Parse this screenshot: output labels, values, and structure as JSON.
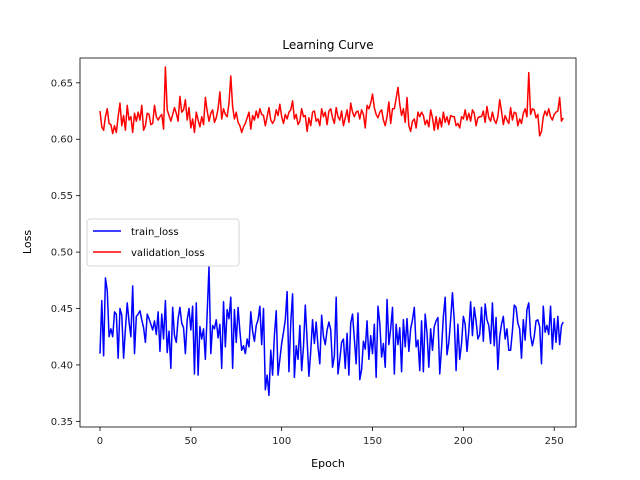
{
  "chart_data": {
    "type": "line",
    "title": "Learning Curve",
    "xlabel": "Epoch",
    "ylabel": "Loss",
    "xlim": [
      -11,
      262
    ],
    "ylim": [
      0.345,
      0.672
    ],
    "xticks": [
      0,
      50,
      100,
      150,
      200,
      250
    ],
    "yticks": [
      0.35,
      0.4,
      0.45,
      0.5,
      0.55,
      0.6,
      0.65
    ],
    "ytick_labels": [
      "0.35",
      "0.40",
      "0.45",
      "0.50",
      "0.55",
      "0.60",
      "0.65"
    ],
    "grid": false,
    "legend_position": "center-left",
    "series": [
      {
        "name": "train_loss",
        "color": "#0000ff",
        "values": [
          0.41,
          0.457,
          0.408,
          0.477,
          0.466,
          0.425,
          0.432,
          0.425,
          0.447,
          0.445,
          0.406,
          0.45,
          0.444,
          0.406,
          0.432,
          0.455,
          0.438,
          0.425,
          0.47,
          0.41,
          0.443,
          0.445,
          0.448,
          0.44,
          0.433,
          0.42,
          0.445,
          0.441,
          0.436,
          0.431,
          0.439,
          0.427,
          0.447,
          0.412,
          0.445,
          0.423,
          0.457,
          0.411,
          0.43,
          0.397,
          0.451,
          0.426,
          0.42,
          0.441,
          0.451,
          0.437,
          0.433,
          0.41,
          0.44,
          0.45,
          0.431,
          0.452,
          0.392,
          0.455,
          0.391,
          0.434,
          0.423,
          0.432,
          0.405,
          0.446,
          0.487,
          0.41,
          0.435,
          0.432,
          0.44,
          0.424,
          0.436,
          0.397,
          0.456,
          0.416,
          0.449,
          0.441,
          0.46,
          0.397,
          0.449,
          0.42,
          0.451,
          0.43,
          0.413,
          0.417,
          0.41,
          0.423,
          0.416,
          0.447,
          0.43,
          0.421,
          0.435,
          0.44,
          0.452,
          0.418,
          0.45,
          0.378,
          0.391,
          0.373,
          0.413,
          0.391,
          0.426,
          0.448,
          0.391,
          0.405,
          0.419,
          0.429,
          0.44,
          0.465,
          0.394,
          0.437,
          0.463,
          0.389,
          0.417,
          0.405,
          0.435,
          0.395,
          0.416,
          0.453,
          0.422,
          0.39,
          0.412,
          0.44,
          0.419,
          0.438,
          0.416,
          0.401,
          0.444,
          0.425,
          0.418,
          0.431,
          0.438,
          0.431,
          0.398,
          0.408,
          0.46,
          0.392,
          0.405,
          0.42,
          0.423,
          0.397,
          0.428,
          0.391,
          0.437,
          0.445,
          0.423,
          0.401,
          0.446,
          0.387,
          0.396,
          0.421,
          0.414,
          0.439,
          0.405,
          0.426,
          0.41,
          0.436,
          0.389,
          0.452,
          0.437,
          0.407,
          0.419,
          0.398,
          0.458,
          0.418,
          0.432,
          0.451,
          0.392,
          0.436,
          0.418,
          0.433,
          0.394,
          0.44,
          0.416,
          0.441,
          0.412,
          0.432,
          0.44,
          0.451,
          0.416,
          0.422,
          0.395,
          0.439,
          0.394,
          0.445,
          0.428,
          0.398,
          0.432,
          0.413,
          0.434,
          0.439,
          0.442,
          0.392,
          0.415,
          0.443,
          0.46,
          0.409,
          0.42,
          0.44,
          0.464,
          0.439,
          0.395,
          0.436,
          0.405,
          0.419,
          0.443,
          0.436,
          0.412,
          0.43,
          0.456,
          0.426,
          0.451,
          0.439,
          0.423,
          0.427,
          0.451,
          0.421,
          0.454,
          0.44,
          0.435,
          0.419,
          0.455,
          0.417,
          0.442,
          0.396,
          0.425,
          0.436,
          0.443,
          0.423,
          0.432,
          0.413,
          0.413,
          0.43,
          0.453,
          0.451,
          0.437,
          0.432,
          0.406,
          0.44,
          0.422,
          0.449,
          0.455,
          0.426,
          0.417,
          0.425,
          0.439,
          0.44,
          0.434,
          0.401,
          0.452,
          0.429,
          0.435,
          0.427,
          0.452,
          0.414,
          0.441,
          0.42,
          0.443,
          0.418,
          0.435,
          0.438
        ]
      },
      {
        "name": "validation_loss",
        "color": "#ff0000",
        "values": [
          0.625,
          0.611,
          0.608,
          0.62,
          0.627,
          0.614,
          0.613,
          0.605,
          0.612,
          0.606,
          0.62,
          0.632,
          0.612,
          0.621,
          0.608,
          0.63,
          0.617,
          0.62,
          0.606,
          0.623,
          0.616,
          0.624,
          0.617,
          0.63,
          0.608,
          0.612,
          0.623,
          0.622,
          0.613,
          0.614,
          0.63,
          0.62,
          0.617,
          0.62,
          0.622,
          0.609,
          0.664,
          0.626,
          0.621,
          0.616,
          0.622,
          0.628,
          0.623,
          0.616,
          0.638,
          0.624,
          0.626,
          0.635,
          0.617,
          0.628,
          0.61,
          0.618,
          0.606,
          0.624,
          0.617,
          0.611,
          0.62,
          0.613,
          0.637,
          0.625,
          0.616,
          0.623,
          0.626,
          0.615,
          0.619,
          0.627,
          0.642,
          0.618,
          0.627,
          0.622,
          0.62,
          0.632,
          0.656,
          0.629,
          0.618,
          0.624,
          0.615,
          0.612,
          0.606,
          0.611,
          0.614,
          0.619,
          0.624,
          0.609,
          0.621,
          0.617,
          0.625,
          0.619,
          0.627,
          0.622,
          0.621,
          0.612,
          0.62,
          0.628,
          0.617,
          0.614,
          0.617,
          0.626,
          0.621,
          0.631,
          0.62,
          0.614,
          0.622,
          0.618,
          0.624,
          0.626,
          0.634,
          0.618,
          0.622,
          0.613,
          0.616,
          0.627,
          0.62,
          0.621,
          0.607,
          0.619,
          0.612,
          0.624,
          0.625,
          0.616,
          0.618,
          0.612,
          0.627,
          0.62,
          0.624,
          0.613,
          0.625,
          0.627,
          0.619,
          0.614,
          0.628,
          0.62,
          0.617,
          0.625,
          0.612,
          0.619,
          0.626,
          0.615,
          0.632,
          0.624,
          0.62,
          0.624,
          0.625,
          0.618,
          0.626,
          0.622,
          0.61,
          0.63,
          0.627,
          0.632,
          0.64,
          0.628,
          0.622,
          0.619,
          0.624,
          0.626,
          0.617,
          0.612,
          0.62,
          0.633,
          0.614,
          0.627,
          0.627,
          0.636,
          0.646,
          0.631,
          0.621,
          0.627,
          0.615,
          0.637,
          0.612,
          0.607,
          0.616,
          0.618,
          0.61,
          0.624,
          0.62,
          0.624,
          0.621,
          0.613,
          0.617,
          0.611,
          0.626,
          0.619,
          0.608,
          0.62,
          0.609,
          0.619,
          0.611,
          0.624,
          0.615,
          0.62,
          0.613,
          0.621,
          0.62,
          0.62,
          0.612,
          0.614,
          0.61,
          0.62,
          0.618,
          0.626,
          0.617,
          0.623,
          0.616,
          0.626,
          0.623,
          0.612,
          0.619,
          0.62,
          0.62,
          0.625,
          0.615,
          0.629,
          0.619,
          0.616,
          0.624,
          0.617,
          0.614,
          0.62,
          0.635,
          0.625,
          0.613,
          0.621,
          0.617,
          0.614,
          0.628,
          0.617,
          0.624,
          0.623,
          0.612,
          0.618,
          0.614,
          0.623,
          0.627,
          0.62,
          0.659,
          0.622,
          0.627,
          0.626,
          0.619,
          0.622,
          0.603,
          0.607,
          0.62,
          0.625,
          0.621,
          0.627,
          0.62,
          0.617,
          0.622,
          0.624,
          0.625,
          0.637,
          0.616,
          0.619
        ]
      }
    ]
  }
}
